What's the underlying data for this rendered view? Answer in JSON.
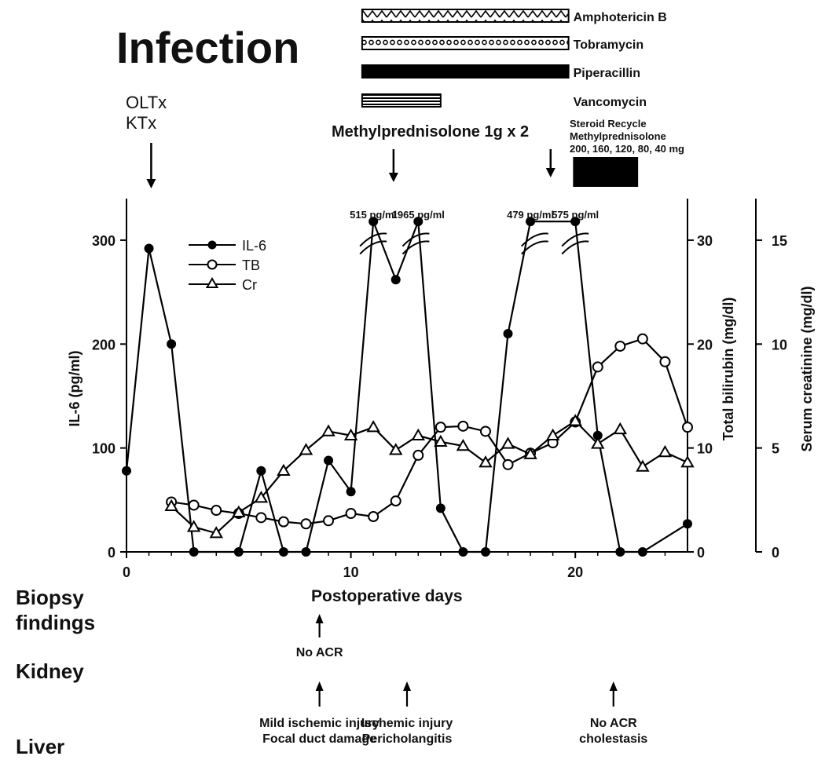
{
  "figure": {
    "title": "Infection",
    "transplant_labels": [
      "OLTx",
      "KTx"
    ],
    "methylprednisolone_label": "Methylprednisolone 1g x 2",
    "steroid_recycle_lines": [
      "Steroid Recycle",
      "Methylprednisolone",
      "200, 160, 120, 80, 40 mg"
    ],
    "biopsy_title_lines": [
      "Biopsy",
      "findings"
    ],
    "kidney_label": "Kidney",
    "liver_label": "Liver"
  },
  "antibiotics": [
    {
      "name": "Amphotericin B",
      "pattern": "zigzag",
      "start": 10.5,
      "end": 19.7
    },
    {
      "name": "Tobramycin",
      "pattern": "dots",
      "start": 10.5,
      "end": 19.7
    },
    {
      "name": "Piperacillin",
      "pattern": "solid",
      "start": 10.5,
      "end": 19.7
    },
    {
      "name": "Vancomycin",
      "pattern": "lines",
      "start": 10.5,
      "end": 14.0
    }
  ],
  "steroid_recycle_bar": {
    "start": 19.9,
    "end": 22.8
  },
  "event_arrows": [
    {
      "day": 1.1,
      "label": "transplant"
    },
    {
      "day": 11.9,
      "label": "methylprednisolone"
    },
    {
      "day": 18.9,
      "label": "steroid-recycle"
    }
  ],
  "biopsies": {
    "kidney": [
      {
        "day": 8.6,
        "lines": [
          "No ACR"
        ]
      }
    ],
    "liver": [
      {
        "day": 8.6,
        "lines": [
          "Mild ischemic injury",
          "Focal duct damage"
        ]
      },
      {
        "day": 12.5,
        "lines": [
          "Ischemic injury",
          "Pericholangitis"
        ]
      },
      {
        "day": 21.7,
        "lines": [
          "No ACR",
          "cholestasis"
        ]
      }
    ]
  },
  "chart_data": {
    "type": "line",
    "xlabel": "Postoperative days",
    "xlim": [
      0,
      25
    ],
    "xticks": [
      0,
      10,
      20
    ],
    "axes": {
      "left": {
        "label": "IL-6 (pg/ml)",
        "lim": [
          0,
          340
        ],
        "ticks": [
          0,
          100,
          200,
          300
        ]
      },
      "middle": {
        "label": "Total bilirubin (mg/dl)",
        "lim": [
          0,
          34
        ],
        "ticks": [
          0,
          10,
          20,
          30
        ]
      },
      "right": {
        "label": "Serum creatinine (mg/dl)",
        "lim": [
          0,
          17
        ],
        "ticks": [
          0,
          5,
          10,
          15
        ]
      }
    },
    "legend_position": "top-left",
    "series": [
      {
        "name": "IL-6",
        "marker": "filled-circle",
        "axis": "left",
        "x": [
          0,
          1,
          2,
          3,
          5,
          6,
          7,
          8,
          9,
          10,
          11,
          12,
          13,
          14,
          15,
          16,
          17,
          18,
          20,
          21,
          22,
          23,
          25
        ],
        "y": [
          78,
          292,
          200,
          0,
          0,
          78,
          0,
          0,
          88,
          58,
          318,
          262,
          318,
          42,
          0,
          0,
          210,
          318,
          318,
          112,
          0,
          0,
          27
        ]
      },
      {
        "name": "TB",
        "marker": "open-circle",
        "axis": "middle",
        "x": [
          2,
          3,
          4,
          5,
          6,
          7,
          8,
          9,
          10,
          11,
          12,
          13,
          14,
          15,
          16,
          17,
          18,
          19,
          20,
          21,
          22,
          23,
          24,
          25
        ],
        "y": [
          4.8,
          4.5,
          4.0,
          3.7,
          3.3,
          2.9,
          2.7,
          3.0,
          3.7,
          3.4,
          4.9,
          9.3,
          12.0,
          12.1,
          11.6,
          8.4,
          9.5,
          10.5,
          12.5,
          17.8,
          19.8,
          20.5,
          18.3,
          12.0
        ]
      },
      {
        "name": "Cr",
        "marker": "open-triangle",
        "axis": "right",
        "x": [
          2,
          3,
          4,
          5,
          6,
          7,
          8,
          9,
          10,
          11,
          12,
          13,
          14,
          15,
          16,
          17,
          18,
          19,
          20,
          21,
          22,
          23,
          24,
          25
        ],
        "y": [
          2.2,
          1.2,
          0.9,
          1.9,
          2.6,
          3.9,
          4.9,
          5.8,
          5.6,
          6.0,
          4.9,
          5.6,
          5.3,
          5.1,
          4.3,
          5.2,
          4.7,
          5.6,
          6.3,
          5.2,
          5.9,
          4.1,
          4.8,
          4.3
        ]
      }
    ],
    "annotations": [
      {
        "text": "515 pg/ml",
        "x": 11
      },
      {
        "text": "1965 pg/ml",
        "x": 13
      },
      {
        "text": "479 pg/ml",
        "x": 18
      },
      {
        "text": "575 pg/ml",
        "x": 20
      }
    ],
    "axis_breaks": [
      11,
      12.9,
      18.2,
      20
    ]
  }
}
